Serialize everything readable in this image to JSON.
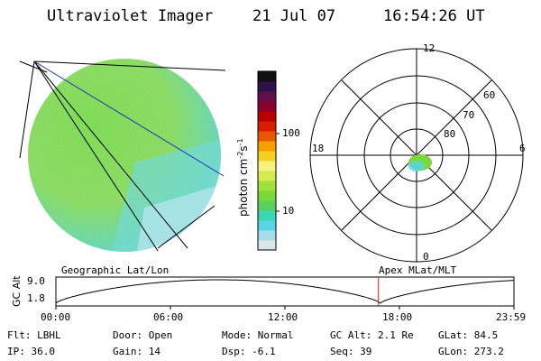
{
  "header": {
    "instrument": "Ultraviolet Imager",
    "date": "21 Jul 07",
    "time": "16:54:26 UT"
  },
  "colorbar": {
    "label": "photon cm",
    "label_exp1": "-2",
    "label_s": "s",
    "label_exp2": "-1",
    "tick_100": "100",
    "tick_10": "10",
    "colors": [
      "#d9e6ec",
      "#a8dcec",
      "#58d6e8",
      "#3cd6b8",
      "#5ad060",
      "#7ad838",
      "#a0e03a",
      "#d4ea50",
      "#f8f080",
      "#f4d020",
      "#f4a000",
      "#e85800",
      "#d81c00",
      "#b80000",
      "#8c0030",
      "#60104a",
      "#301048",
      "#101010"
    ]
  },
  "polar": {
    "mlt_12": "12",
    "mlt_18": "18",
    "mlt_6": "6",
    "mlt_0": "0",
    "lat_60": "60",
    "lat_70": "70",
    "lat_80": "80"
  },
  "timeline": {
    "ylabel": "GC Alt",
    "y_top": "9.0",
    "y_bottom": "1.8",
    "left_title": "Geographic Lat/Lon",
    "right_title": "Apex MLat/MLT",
    "ticks": [
      "00:00",
      "06:00",
      "12:00",
      "18:00",
      "23:59"
    ],
    "marker_time_hours": 16.9
  },
  "info": {
    "flt": "Flt: LBHL",
    "door": "Door: Open",
    "mode": "Mode: Normal",
    "gcalt": "GC Alt: 2.1 Re",
    "glat": "GLat:  84.5",
    "ip": "IP: 36.0",
    "gain": "Gain: 14",
    "dsp": "Dsp:   -6.1",
    "seq": "Seq: 39",
    "glon": "GLon: 273.2"
  }
}
